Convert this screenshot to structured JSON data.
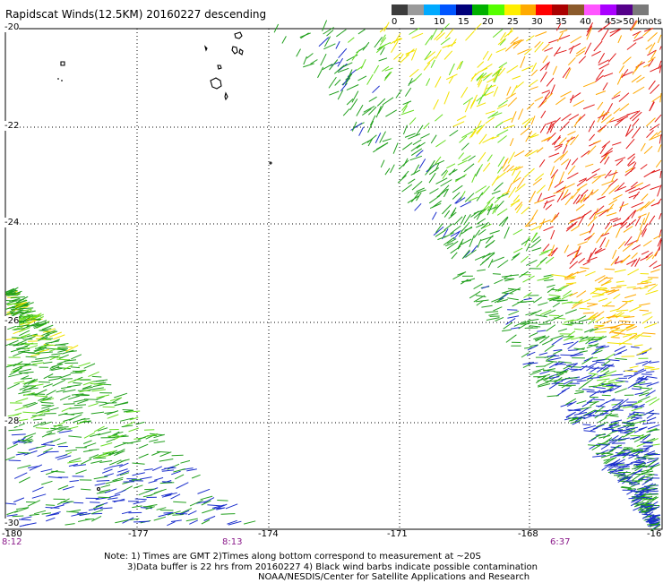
{
  "title": "Rapidscat Winds(12.5KM) 20160227 descending",
  "color_scale": {
    "labels": [
      "0",
      "5",
      "10",
      "15",
      "20",
      "25",
      "30",
      "35",
      "40",
      "45",
      ">50 knots"
    ],
    "colors": [
      "#3c3c3c",
      "#9a9a9a",
      "#00aaff",
      "#0055ff",
      "#00007a",
      "#00b000",
      "#55ff00",
      "#ffee00",
      "#ffaa00",
      "#ff0000",
      "#aa0000",
      "#8b5a2b",
      "#ff55ff",
      "#aa00ff",
      "#55008a",
      "#7a7a7a"
    ]
  },
  "axes": {
    "lat_labels": [
      "-20",
      "-22",
      "-24",
      "-26",
      "-28",
      "-30"
    ],
    "lon_labels": [
      "-180",
      "-177",
      "-174",
      "-171",
      "-168",
      "-16"
    ]
  },
  "times": [
    "8:12",
    "8:13",
    "6:37"
  ],
  "notes": [
    "Note: 1) Times are GMT 2)Times along bottom correspond to measurement at ~20S",
    "3)Data buffer is 22 hrs from 20160227 4) Black wind barbs indicate possible contamination",
    "NOAA/NESDIS/Center for Satellite Applications and Research"
  ],
  "wind_colors": {
    "blue": "#1a2ecc",
    "green": "#22a01e",
    "light_green": "#66dd22",
    "yellow": "#f2e200",
    "orange": "#ffa800",
    "red": "#e01a1a"
  }
}
